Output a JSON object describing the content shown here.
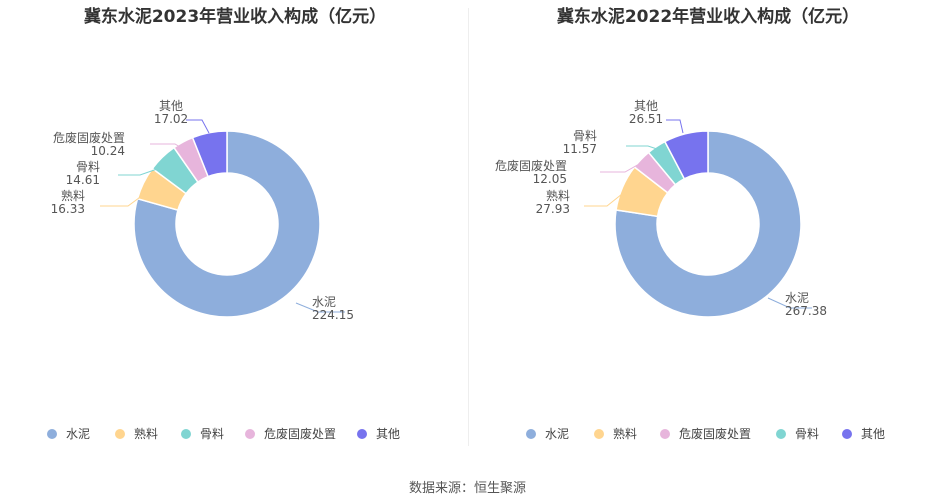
{
  "chart_data": [
    {
      "type": "pie",
      "variant": "donut",
      "title": "冀东水泥2023年营业收入构成（亿元）",
      "legend_position": "bottom",
      "slices": [
        {
          "name": "水泥",
          "value": 224.15,
          "value_label": "224.15",
          "color": "#8eaedc"
        },
        {
          "name": "熟料",
          "value": 16.33,
          "value_label": "16.33",
          "color": "#ffd58f"
        },
        {
          "name": "骨料",
          "value": 14.61,
          "value_label": "14.61",
          "color": "#80d5d2"
        },
        {
          "name": "危废固废处置",
          "value": 10.24,
          "value_label": "10.24",
          "color": "#e7b5dc"
        },
        {
          "name": "其他",
          "value": 17.02,
          "value_label": "17.02",
          "color": "#7773ee"
        }
      ]
    },
    {
      "type": "pie",
      "variant": "donut",
      "title": "冀东水泥2022年营业收入构成（亿元）",
      "legend_position": "bottom",
      "slices": [
        {
          "name": "水泥",
          "value": 267.38,
          "value_label": "267.38",
          "color": "#8eaedc"
        },
        {
          "name": "熟料",
          "value": 27.93,
          "value_label": "27.93",
          "color": "#ffd58f"
        },
        {
          "name": "危废固废处置",
          "value": 12.05,
          "value_label": "12.05",
          "color": "#e7b5dc"
        },
        {
          "name": "骨料",
          "value": 11.57,
          "value_label": "11.57",
          "color": "#80d5d2"
        },
        {
          "name": "其他",
          "value": 26.51,
          "value_label": "26.51",
          "color": "#7773ee"
        }
      ]
    }
  ],
  "footer": {
    "source": "数据来源：恒生聚源"
  }
}
